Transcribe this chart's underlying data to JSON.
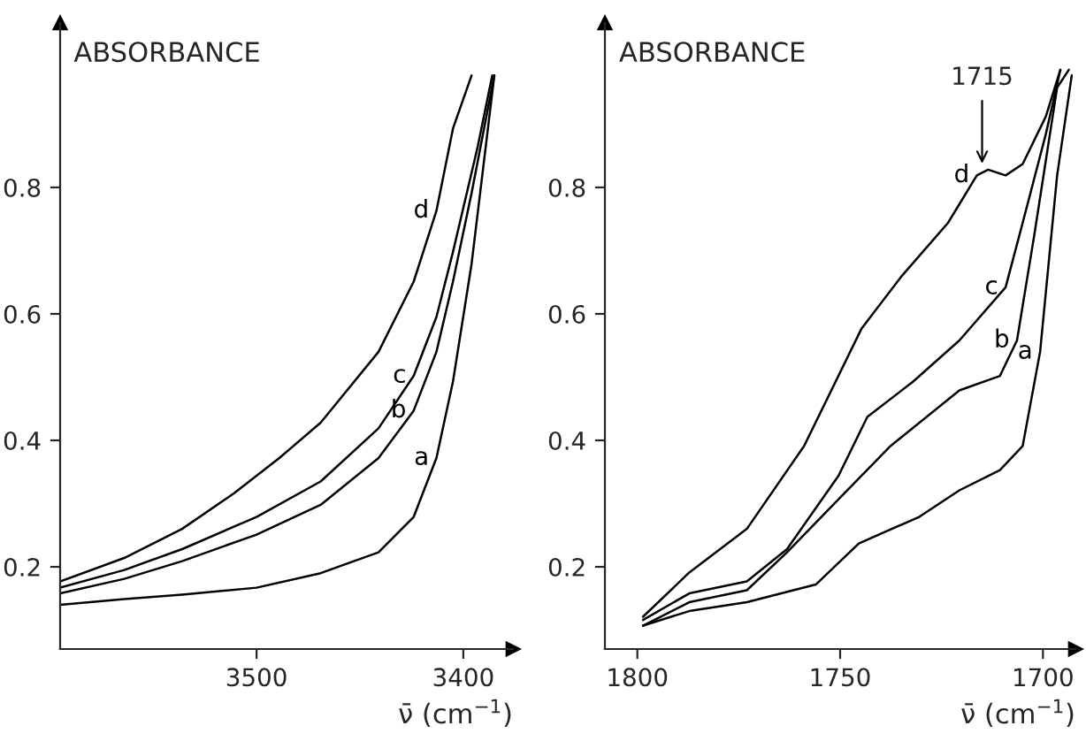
{
  "chart_data": [
    {
      "type": "line",
      "ylabel": "ABSORBANCE",
      "xlabel": "ν̄ (cm$^{−1}$)",
      "xlim": [
        3595,
        3376
      ],
      "ylim": [
        0.07,
        1.06
      ],
      "xticks": [
        3500,
        3400
      ],
      "yticks": [
        0.2,
        0.4,
        0.6,
        0.8
      ],
      "series": [
        {
          "name": "a",
          "color": "#000000",
          "x": [
            3595,
            3564,
            3536,
            3500,
            3469,
            3441,
            3424,
            3413,
            3405,
            3396,
            3385
          ],
          "values": [
            0.14,
            0.149,
            0.156,
            0.167,
            0.19,
            0.223,
            0.279,
            0.372,
            0.493,
            0.679,
            0.977
          ]
        },
        {
          "name": "b",
          "color": "#000000",
          "x": [
            3595,
            3564,
            3536,
            3500,
            3469,
            3441,
            3424,
            3413,
            3405,
            3396,
            3385
          ],
          "values": [
            0.158,
            0.181,
            0.209,
            0.251,
            0.298,
            0.372,
            0.447,
            0.54,
            0.651,
            0.791,
            0.977
          ]
        },
        {
          "name": "c",
          "color": "#000000",
          "x": [
            3595,
            3564,
            3536,
            3500,
            3469,
            3441,
            3424,
            3413,
            3405,
            3393,
            3386
          ],
          "values": [
            0.167,
            0.195,
            0.228,
            0.279,
            0.335,
            0.419,
            0.502,
            0.595,
            0.698,
            0.865,
            0.977
          ]
        },
        {
          "name": "d",
          "color": "#000000",
          "x": [
            3595,
            3564,
            3536,
            3511,
            3500,
            3489,
            3469,
            3441,
            3424,
            3413,
            3405,
            3396
          ],
          "values": [
            0.177,
            0.214,
            0.26,
            0.316,
            0.344,
            0.372,
            0.428,
            0.54,
            0.651,
            0.763,
            0.893,
            0.977
          ]
        }
      ]
    },
    {
      "type": "line",
      "ylabel": "ABSORBANCE",
      "xlabel": "ν̄ (cm$^{−1}$)",
      "xlim": [
        1808,
        1692
      ],
      "ylim": [
        0.07,
        1.06
      ],
      "xticks": [
        1800,
        1750,
        1700
      ],
      "yticks": [
        0.2,
        0.4,
        0.6,
        0.8
      ],
      "annotations": [
        {
          "text": "1715",
          "x": 1715,
          "y": 0.83
        }
      ],
      "series": [
        {
          "name": "a",
          "color": "#000000",
          "x": [
            1798.6,
            1787.2,
            1773,
            1756,
            1745.4,
            1730.5,
            1720.6,
            1710.6,
            1705,
            1700.7,
            1696.5,
            1692.9
          ],
          "values": [
            0.107,
            0.13,
            0.144,
            0.172,
            0.237,
            0.279,
            0.321,
            0.353,
            0.391,
            0.54,
            0.819,
            0.977
          ]
        },
        {
          "name": "b",
          "color": "#000000",
          "x": [
            1798.6,
            1787.2,
            1773,
            1763.1,
            1750.4,
            1737.6,
            1720.6,
            1710.6,
            1706.4,
            1702.1,
            1696.5,
            1693.6
          ],
          "values": [
            0.107,
            0.144,
            0.163,
            0.223,
            0.307,
            0.391,
            0.479,
            0.502,
            0.558,
            0.726,
            0.958,
            0.986
          ]
        },
        {
          "name": "c",
          "color": "#000000",
          "x": [
            1798.6,
            1787.2,
            1773,
            1763.1,
            1750.4,
            1743.3,
            1732,
            1720.6,
            1709.2,
            1705,
            1699.3,
            1695.7
          ],
          "values": [
            0.116,
            0.158,
            0.177,
            0.228,
            0.344,
            0.437,
            0.493,
            0.558,
            0.642,
            0.744,
            0.884,
            0.986
          ]
        },
        {
          "name": "d",
          "color": "#000000",
          "x": [
            1798.6,
            1787.2,
            1773,
            1758.9,
            1744.7,
            1734.8,
            1723.4,
            1716.3,
            1713.5,
            1709.2,
            1705,
            1699.3,
            1695.7
          ],
          "values": [
            0.121,
            0.191,
            0.26,
            0.391,
            0.577,
            0.66,
            0.744,
            0.819,
            0.828,
            0.819,
            0.837,
            0.912,
            0.986
          ]
        }
      ]
    }
  ]
}
